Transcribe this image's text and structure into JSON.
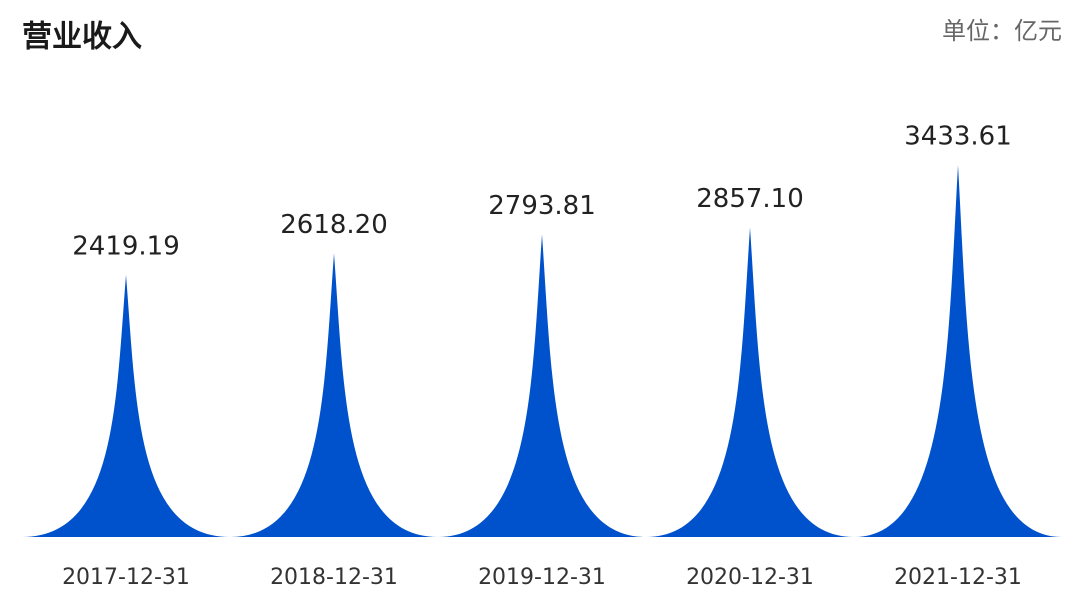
{
  "chart_data": {
    "type": "pictorial-bar",
    "title": "营业收入",
    "unit": "单位：亿元",
    "categories": [
      "2017-12-31",
      "2018-12-31",
      "2019-12-31",
      "2020-12-31",
      "2021-12-31"
    ],
    "values": [
      2419.19,
      2618.2,
      2793.81,
      2857.1,
      3433.61
    ],
    "value_labels": [
      "2419.19",
      "2618.20",
      "2793.81",
      "2857.10",
      "3433.61"
    ],
    "color": "#0052cc"
  }
}
